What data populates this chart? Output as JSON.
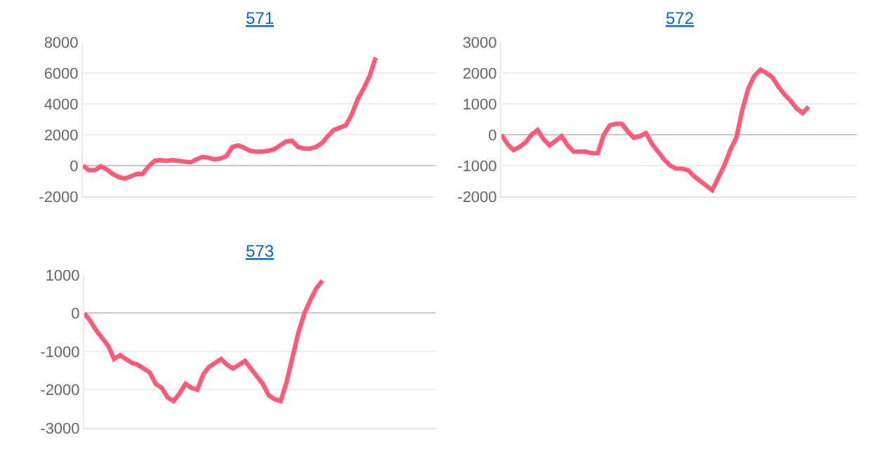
{
  "chart_data": [
    {
      "type": "line",
      "title": "571",
      "categories": [
        null,
        null,
        null,
        null,
        null,
        null,
        null,
        null,
        null,
        null,
        null,
        null,
        null,
        null,
        null,
        null,
        null,
        null,
        null,
        null,
        null,
        null,
        null,
        null,
        null,
        null,
        null,
        null,
        null,
        null,
        null,
        null,
        null,
        null,
        null,
        null,
        null,
        null,
        null,
        null,
        null,
        null,
        null,
        null,
        null,
        null,
        null,
        null,
        null,
        null,
        null,
        null,
        null,
        null,
        null,
        null,
        null,
        null,
        null,
        null
      ],
      "series": [
        {
          "color": "#ff5b79",
          "values": [
            0,
            -300,
            -300,
            -50,
            -250,
            -550,
            -750,
            -850,
            -700,
            -550,
            -550,
            -50,
            300,
            350,
            300,
            350,
            300,
            250,
            200,
            400,
            550,
            500,
            400,
            450,
            600,
            1200,
            1300,
            1150,
            950,
            900,
            900,
            950,
            1050,
            1300,
            1550,
            1600,
            1200,
            1100,
            1100,
            1200,
            1450,
            1900,
            2300,
            2450,
            2600,
            3300,
            4300,
            5000,
            5800,
            7000,
            null,
            null,
            null,
            null,
            null,
            null,
            null,
            null,
            null,
            null
          ]
        }
      ],
      "ylim": [
        -2000,
        8000
      ],
      "yticks": [
        -2000,
        0,
        2000,
        4000,
        6000,
        8000
      ],
      "grid": "y",
      "tick_labels": "y",
      "marker": "none",
      "line_style": "solid"
    },
    {
      "type": "line",
      "title": "572",
      "categories": [
        null,
        null,
        null,
        null,
        null,
        null,
        null,
        null,
        null,
        null,
        null,
        null,
        null,
        null,
        null,
        null,
        null,
        null,
        null,
        null,
        null,
        null,
        null,
        null,
        null,
        null,
        null,
        null,
        null,
        null,
        null,
        null,
        null,
        null,
        null,
        null,
        null,
        null,
        null,
        null,
        null,
        null,
        null,
        null,
        null,
        null,
        null,
        null,
        null,
        null,
        null,
        null,
        null,
        null,
        null,
        null,
        null,
        null,
        null,
        null
      ],
      "series": [
        {
          "color": "#ff5b79",
          "values": [
            0,
            -300,
            -500,
            -400,
            -250,
            0,
            150,
            -150,
            -350,
            -200,
            -50,
            -350,
            -550,
            -550,
            -550,
            -600,
            -600,
            0,
            300,
            350,
            350,
            100,
            -100,
            -50,
            50,
            -300,
            -550,
            -800,
            -1000,
            -1100,
            -1100,
            -1150,
            -1350,
            -1500,
            -1650,
            -1800,
            -1400,
            -1000,
            -500,
            -100,
            800,
            1500,
            1900,
            2100,
            2000,
            1850,
            1550,
            1300,
            1100,
            850,
            700,
            900,
            null,
            null,
            null,
            null,
            null,
            null,
            null,
            null
          ]
        }
      ],
      "ylim": [
        -2000,
        3000
      ],
      "yticks": [
        -2000,
        -1000,
        0,
        1000,
        2000,
        3000
      ],
      "grid": "y",
      "tick_labels": "y",
      "marker": "none",
      "line_style": "solid"
    },
    {
      "type": "line",
      "title": "573",
      "categories": [
        null,
        null,
        null,
        null,
        null,
        null,
        null,
        null,
        null,
        null,
        null,
        null,
        null,
        null,
        null,
        null,
        null,
        null,
        null,
        null,
        null,
        null,
        null,
        null,
        null,
        null,
        null,
        null,
        null,
        null,
        null,
        null,
        null,
        null,
        null,
        null,
        null,
        null,
        null,
        null,
        null,
        null,
        null,
        null,
        null,
        null,
        null,
        null,
        null,
        null,
        null,
        null,
        null,
        null,
        null,
        null,
        null,
        null,
        null,
        null
      ],
      "series": [
        {
          "color": "#ff5b79",
          "values": [
            0,
            -200,
            -450,
            -650,
            -850,
            -1200,
            -1100,
            -1200,
            -1300,
            -1350,
            -1450,
            -1550,
            -1850,
            -1950,
            -2200,
            -2300,
            -2100,
            -1850,
            -1950,
            -2000,
            -1600,
            -1400,
            -1300,
            -1200,
            -1350,
            -1450,
            -1350,
            -1250,
            -1450,
            -1650,
            -1850,
            -2150,
            -2250,
            -2300,
            -1800,
            -1150,
            -500,
            0,
            350,
            650,
            850,
            null,
            null,
            null,
            null,
            null,
            null,
            null,
            null,
            null,
            null,
            null,
            null,
            null,
            null,
            null,
            null,
            null,
            null,
            null
          ]
        }
      ],
      "ylim": [
        -3000,
        1000
      ],
      "yticks": [
        -3000,
        -2000,
        -1000,
        0,
        1000
      ],
      "grid": "y",
      "tick_labels": "y",
      "marker": "none",
      "line_style": "solid"
    }
  ]
}
